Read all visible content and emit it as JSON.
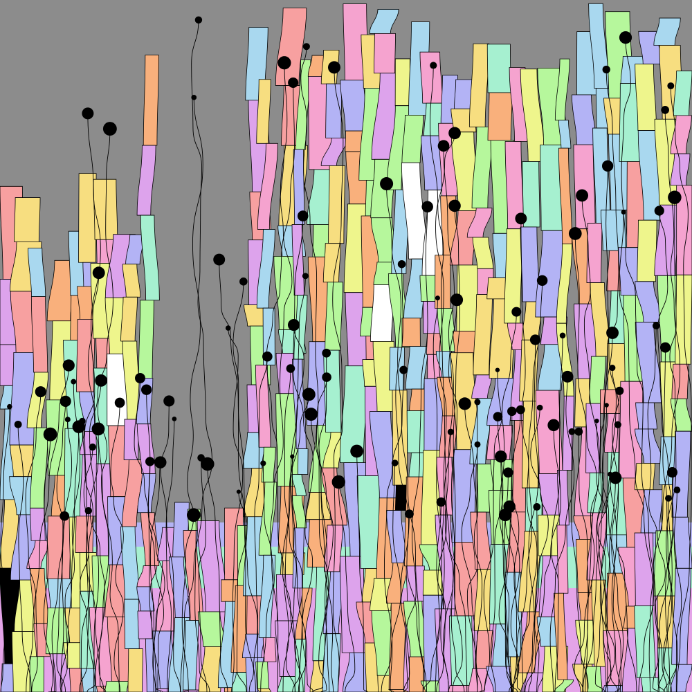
{
  "artwork": {
    "background": "#8c8c8c",
    "bands": [
      "#b3b3f5",
      "#a6f0d0",
      "#e4a4e8"
    ],
    "palette": [
      "#f7a0a0",
      "#f5a3cf",
      "#a9d8ef",
      "#b3b3f5",
      "#a6f0d0",
      "#f7de80",
      "#eef58c",
      "#f9b07c",
      "#b6f79c",
      "#dda3ec",
      "#ffffff",
      "#000000"
    ],
    "stroke": "#000000",
    "dot_color": "#000000"
  }
}
